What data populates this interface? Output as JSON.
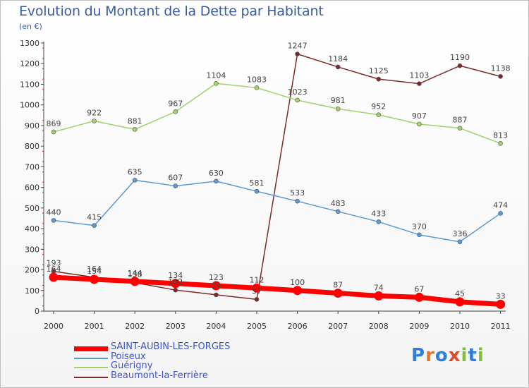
{
  "title": "Evolution du Montant de la Dette par Habitant",
  "subtitle": "(en €)",
  "logo": {
    "text": "Proxiti",
    "colors": [
      "#2f7fd8",
      "#e8742b",
      "#2f7fd8",
      "#e04a2a",
      "#7fbf3a",
      "#2f7fd8",
      "#7fbf3a"
    ]
  },
  "chart_data": {
    "type": "line",
    "title": "Evolution du Montant de la Dette par Habitant",
    "ylabel": "(en €)",
    "xlabel": "",
    "x": [
      "2000",
      "2001",
      "2002",
      "2003",
      "2004",
      "2005",
      "2006",
      "2007",
      "2008",
      "2009",
      "2010",
      "2011"
    ],
    "yticks": [
      0,
      100,
      200,
      300,
      400,
      500,
      600,
      700,
      800,
      900,
      1000,
      1100,
      1200,
      1300
    ],
    "ylim": [
      0,
      1300
    ],
    "grid": false,
    "legend_position": "bottom-left",
    "series": [
      {
        "name": "SAINT-AUBIN-LES-FORGES",
        "color": "#ff0000",
        "width": 7,
        "marker": 6,
        "values": [
          164,
          154,
          144,
          134,
          123,
          112,
          100,
          87,
          74,
          67,
          45,
          33
        ],
        "labels": [
          "164",
          "154",
          "144",
          "134",
          "123",
          "112",
          "100",
          "87",
          "74",
          "67",
          "45",
          "33"
        ]
      },
      {
        "name": "Poiseux",
        "color": "#5a9bd5",
        "width": 1.5,
        "marker": 3,
        "values": [
          440,
          415,
          635,
          607,
          630,
          581,
          533,
          483,
          433,
          370,
          336,
          474
        ],
        "labels": [
          "440",
          "415",
          "635",
          "607",
          "630",
          "581",
          "533",
          "483",
          "433",
          "370",
          "336",
          "474"
        ]
      },
      {
        "name": "Guérigny",
        "color": "#9ed36a",
        "width": 1.5,
        "marker": 3,
        "values": [
          869,
          922,
          881,
          967,
          1104,
          1083,
          1023,
          981,
          952,
          907,
          887,
          813
        ],
        "labels": [
          "869",
          "922",
          "881",
          "967",
          "1104",
          "1083",
          "1023",
          "981",
          "952",
          "907",
          "887",
          "813"
        ]
      },
      {
        "name": "Beaumont-la-Ferrière",
        "color": "#7a2a2a",
        "width": 1.5,
        "marker": 3,
        "values": [
          193,
          164,
          138,
          102,
          79,
          57,
          1247,
          1184,
          1125,
          1103,
          1190,
          1138
        ],
        "labels": [
          "193",
          "164",
          "138",
          "102",
          "79",
          "57",
          "1247",
          "1184",
          "1125",
          "1103",
          "1190",
          "1138"
        ]
      }
    ]
  }
}
